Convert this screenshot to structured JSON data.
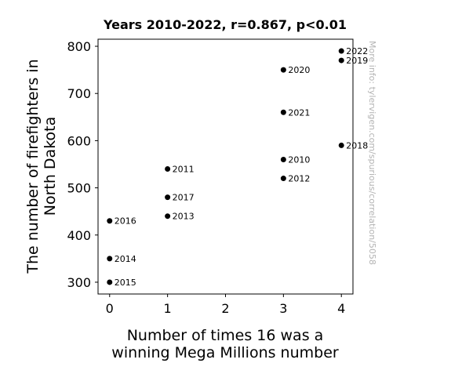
{
  "chart_data": {
    "type": "scatter",
    "title": "Years 2010-2022, r=0.867, p<0.01",
    "xlabel": [
      "Number of times 16 was a",
      "winning Mega Millions number"
    ],
    "ylabel": [
      "The number of firefighters in",
      "North Dakota"
    ],
    "xlim": [
      -0.2,
      4.2
    ],
    "ylim": [
      275,
      815
    ],
    "xticks": [
      0,
      1,
      2,
      3,
      4
    ],
    "yticks": [
      300,
      400,
      500,
      600,
      700,
      800
    ],
    "grid": false,
    "marker_color": "#000000",
    "points": [
      {
        "year": "2010",
        "x": 3,
        "y": 560
      },
      {
        "year": "2011",
        "x": 1,
        "y": 540
      },
      {
        "year": "2012",
        "x": 3,
        "y": 520
      },
      {
        "year": "2013",
        "x": 1,
        "y": 440
      },
      {
        "year": "2014",
        "x": 0,
        "y": 350
      },
      {
        "year": "2015",
        "x": 0,
        "y": 300
      },
      {
        "year": "2016",
        "x": 0,
        "y": 430
      },
      {
        "year": "2017",
        "x": 1,
        "y": 480
      },
      {
        "year": "2018",
        "x": 4,
        "y": 590
      },
      {
        "year": "2019",
        "x": 4,
        "y": 770
      },
      {
        "year": "2020",
        "x": 3,
        "y": 750
      },
      {
        "year": "2021",
        "x": 3,
        "y": 660
      },
      {
        "year": "2022",
        "x": 4,
        "y": 790
      }
    ]
  },
  "watermark": {
    "text": "More info: tylervigen.com/spurious/correlation/5058",
    "color": "#b3b3b3"
  }
}
